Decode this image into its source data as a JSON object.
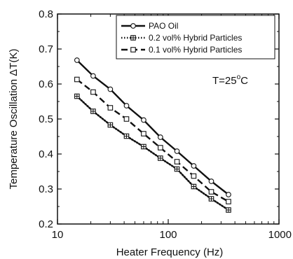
{
  "chart_data": {
    "type": "line",
    "xlabel": "Heater Frequency (Hz)",
    "ylabel": "Temperature Oscillation ΔT(K)",
    "xscale": "log",
    "xlim": [
      10,
      1000
    ],
    "ylim": [
      0.2,
      0.8
    ],
    "x_ticks": [
      10,
      100,
      1000
    ],
    "x_tick_labels": [
      "10",
      "100",
      "1000"
    ],
    "y_ticks": [
      0.2,
      0.3,
      0.4,
      0.5,
      0.6,
      0.7,
      0.8
    ],
    "y_tick_labels": [
      "0.2",
      "0.3",
      "0.4",
      "0.5",
      "0.6",
      "0.7",
      "0.8"
    ],
    "grid": false,
    "legend_position": "top-right",
    "annotation": {
      "text_main": "T=25",
      "text_sup": "o",
      "text_unit": "C"
    },
    "x": [
      15,
      21,
      30,
      42,
      60,
      85,
      120,
      170,
      245,
      350
    ],
    "series": [
      {
        "name": "PAO Oil",
        "line": "solid",
        "marker": "circle",
        "values": [
          0.668,
          0.623,
          0.585,
          0.538,
          0.497,
          0.448,
          0.408,
          0.366,
          0.322,
          0.284
        ]
      },
      {
        "name": "0.2 vol% Hybrid Particles",
        "line": "dotted",
        "marker": "crossed-square",
        "values": [
          0.565,
          0.522,
          0.483,
          0.451,
          0.421,
          0.388,
          0.357,
          0.307,
          0.272,
          0.24
        ]
      },
      {
        "name": "0.1 vol% Hybrid Particles",
        "line": "dashed",
        "marker": "square",
        "values": [
          0.613,
          0.577,
          0.532,
          0.5,
          0.458,
          0.418,
          0.378,
          0.337,
          0.292,
          0.264
        ]
      }
    ]
  }
}
